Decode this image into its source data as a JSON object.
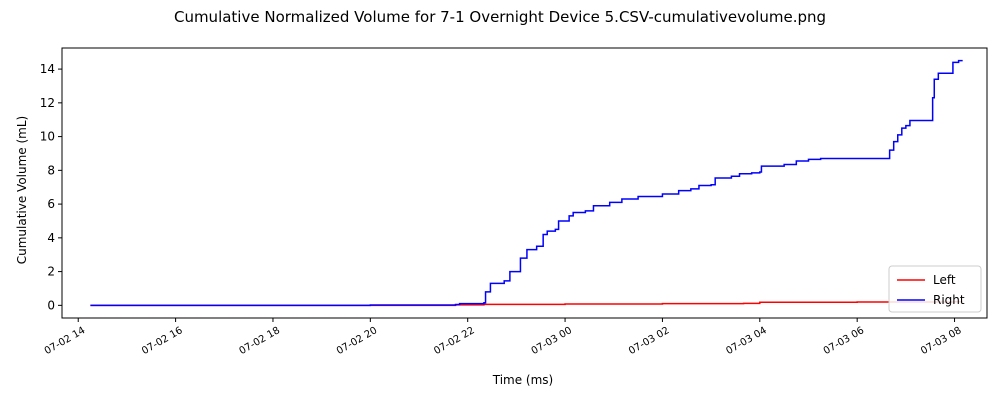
{
  "chart_data": {
    "type": "line",
    "title": "Cumulative Normalized Volume for 7-1 Overnight Device 5.CSV-cumulativevolume.png",
    "xlabel": "Time (ms)",
    "ylabel": "Cumulative Volume (mL)",
    "xlim": [
      "2024-07-02T13:40",
      "2024-07-03T08:40"
    ],
    "ylim": [
      -0.75,
      15.25
    ],
    "x_tick_values": [
      "2024-07-02T14:00",
      "2024-07-02T16:00",
      "2024-07-02T18:00",
      "2024-07-02T20:00",
      "2024-07-02T22:00",
      "2024-07-03T00:00",
      "2024-07-03T02:00",
      "2024-07-03T04:00",
      "2024-07-03T06:00",
      "2024-07-03T08:00"
    ],
    "x_tick_labels": [
      "07-02 14",
      "07-02 16",
      "07-02 18",
      "07-02 20",
      "07-02 22",
      "07-03 00",
      "07-03 02",
      "07-03 04",
      "07-03 06",
      "07-03 08"
    ],
    "y_ticks": [
      0,
      2,
      4,
      6,
      8,
      10,
      12,
      14
    ],
    "legend_position": "lower-right",
    "series": [
      {
        "name": "Left",
        "color": "#ff0000",
        "points": [
          [
            "2024-07-02T14:15",
            0
          ],
          [
            "2024-07-02T21:45",
            0.03
          ],
          [
            "2024-07-02T22:20",
            0.06
          ],
          [
            "2024-07-03T00:00",
            0.08
          ],
          [
            "2024-07-03T02:00",
            0.1
          ],
          [
            "2024-07-03T03:40",
            0.12
          ],
          [
            "2024-07-03T04:00",
            0.18
          ],
          [
            "2024-07-03T06:00",
            0.2
          ],
          [
            "2024-07-03T08:00",
            0.21
          ],
          [
            "2024-07-03T08:10",
            0.21
          ]
        ]
      },
      {
        "name": "Right",
        "color": "#0000ff",
        "points": [
          [
            "2024-07-02T14:15",
            0
          ],
          [
            "2024-07-02T20:00",
            0.02
          ],
          [
            "2024-07-02T21:45",
            0.05
          ],
          [
            "2024-07-02T21:50",
            0.1
          ],
          [
            "2024-07-02T22:20",
            0.15
          ],
          [
            "2024-07-02T22:22",
            0.8
          ],
          [
            "2024-07-02T22:28",
            1.3
          ],
          [
            "2024-07-02T22:45",
            1.45
          ],
          [
            "2024-07-02T22:52",
            2.0
          ],
          [
            "2024-07-02T23:05",
            2.8
          ],
          [
            "2024-07-02T23:13",
            3.3
          ],
          [
            "2024-07-02T23:25",
            3.5
          ],
          [
            "2024-07-02T23:33",
            4.2
          ],
          [
            "2024-07-02T23:38",
            4.4
          ],
          [
            "2024-07-02T23:48",
            4.5
          ],
          [
            "2024-07-02T23:52",
            5.0
          ],
          [
            "2024-07-03T00:05",
            5.3
          ],
          [
            "2024-07-03T00:10",
            5.5
          ],
          [
            "2024-07-03T00:25",
            5.6
          ],
          [
            "2024-07-03T00:35",
            5.9
          ],
          [
            "2024-07-03T00:55",
            6.1
          ],
          [
            "2024-07-03T01:10",
            6.3
          ],
          [
            "2024-07-03T01:30",
            6.45
          ],
          [
            "2024-07-03T02:00",
            6.6
          ],
          [
            "2024-07-03T02:20",
            6.8
          ],
          [
            "2024-07-03T02:35",
            6.9
          ],
          [
            "2024-07-03T02:45",
            7.1
          ],
          [
            "2024-07-03T03:00",
            7.15
          ],
          [
            "2024-07-03T03:05",
            7.55
          ],
          [
            "2024-07-03T03:25",
            7.65
          ],
          [
            "2024-07-03T03:35",
            7.8
          ],
          [
            "2024-07-03T03:50",
            7.85
          ],
          [
            "2024-07-03T04:00",
            7.9
          ],
          [
            "2024-07-03T04:02",
            8.25
          ],
          [
            "2024-07-03T04:30",
            8.35
          ],
          [
            "2024-07-03T04:45",
            8.55
          ],
          [
            "2024-07-03T05:00",
            8.65
          ],
          [
            "2024-07-03T05:15",
            8.7
          ],
          [
            "2024-07-03T06:38",
            8.7
          ],
          [
            "2024-07-03T06:40",
            9.2
          ],
          [
            "2024-07-03T06:45",
            9.7
          ],
          [
            "2024-07-03T06:50",
            10.1
          ],
          [
            "2024-07-03T06:55",
            10.5
          ],
          [
            "2024-07-03T07:00",
            10.65
          ],
          [
            "2024-07-03T07:05",
            10.95
          ],
          [
            "2024-07-03T07:30",
            10.95
          ],
          [
            "2024-07-03T07:33",
            12.3
          ],
          [
            "2024-07-03T07:35",
            13.4
          ],
          [
            "2024-07-03T07:40",
            13.75
          ],
          [
            "2024-07-03T07:55",
            13.75
          ],
          [
            "2024-07-03T07:58",
            14.4
          ],
          [
            "2024-07-03T08:05",
            14.5
          ],
          [
            "2024-07-03T08:10",
            14.5
          ]
        ]
      }
    ]
  }
}
